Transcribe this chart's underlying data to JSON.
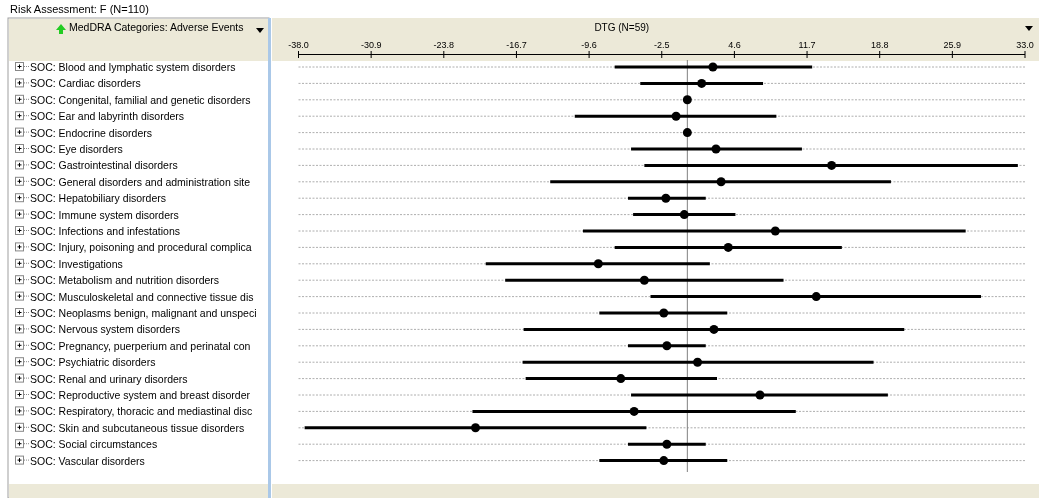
{
  "chart_data": {
    "type": "scatter",
    "orientation": "horizontal",
    "title": "Risk Assessment: F (N=110)",
    "ylabel": "MedDRA Categories: Adverse Events",
    "xlabel": "DTG (N=59)",
    "categories": [
      "SOC: Blood and lymphatic system disorders",
      "SOC: Cardiac disorders",
      "SOC: Congenital, familial and genetic disorders",
      "SOC: Ear and labyrinth disorders",
      "SOC: Endocrine disorders",
      "SOC: Eye disorders",
      "SOC: Gastrointestinal disorders",
      "SOC: General disorders and administration site",
      "SOC: Hepatobiliary disorders",
      "SOC: Immune system disorders",
      "SOC: Infections and infestations",
      "SOC: Injury, poisoning and procedural complica",
      "SOC: Investigations",
      "SOC: Metabolism and nutrition disorders",
      "SOC: Musculoskeletal and connective tissue dis",
      "SOC: Neoplasms benign, malignant and unspeci",
      "SOC: Nervous system disorders",
      "SOC: Pregnancy, puerperium and perinatal con",
      "SOC: Psychiatric disorders",
      "SOC: Renal and urinary disorders",
      "SOC: Reproductive system and breast disorder",
      "SOC: Respiratory, thoracic and mediastinal disc",
      "SOC: Skin and subcutaneous tissue disorders",
      "SOC: Social circumstances",
      "SOC: Vascular disorders"
    ],
    "values": [
      2.5,
      1.4,
      0,
      -1.1,
      0,
      2.8,
      14.1,
      3.3,
      -2.1,
      -0.3,
      8.6,
      4.0,
      -8.7,
      -4.2,
      12.6,
      -2.3,
      2.6,
      -2.0,
      1.0,
      -6.5,
      7.1,
      -5.2,
      -20.7,
      -2.0,
      -2.3
    ],
    "errors": [
      [
        -7.1,
        12.2
      ],
      [
        -4.6,
        7.4
      ],
      null,
      [
        -11.0,
        8.7
      ],
      null,
      [
        -5.5,
        11.2
      ],
      [
        -4.2,
        32.3
      ],
      [
        -13.4,
        19.9
      ],
      [
        -5.8,
        1.8
      ],
      [
        -5.3,
        4.7
      ],
      [
        -10.2,
        27.2
      ],
      [
        -7.1,
        15.1
      ],
      [
        -19.7,
        2.2
      ],
      [
        -17.8,
        9.4
      ],
      [
        -3.6,
        28.7
      ],
      [
        -8.6,
        3.9
      ],
      [
        -16.0,
        21.2
      ],
      [
        -5.8,
        1.8
      ],
      [
        -16.1,
        18.2
      ],
      [
        -15.8,
        2.9
      ],
      [
        -5.5,
        19.6
      ],
      [
        -21.0,
        10.6
      ],
      [
        -37.4,
        -4.0
      ],
      [
        -5.8,
        1.8
      ],
      [
        -8.6,
        3.9
      ]
    ],
    "color": "#000000",
    "marker": "circle",
    "grid": "y",
    "xlim": [
      -38,
      33
    ],
    "xticks": [
      {
        "value": -38,
        "label": "-38.0"
      },
      -30.9,
      -23.8,
      -16.7,
      -9.6,
      -2.5,
      4.6,
      11.7,
      18.8,
      25.9,
      {
        "value": 33,
        "label": "33.0"
      }
    ],
    "ref_lines": [
      {
        "axis": "x",
        "value": 0,
        "color": "#808080"
      }
    ]
  }
}
